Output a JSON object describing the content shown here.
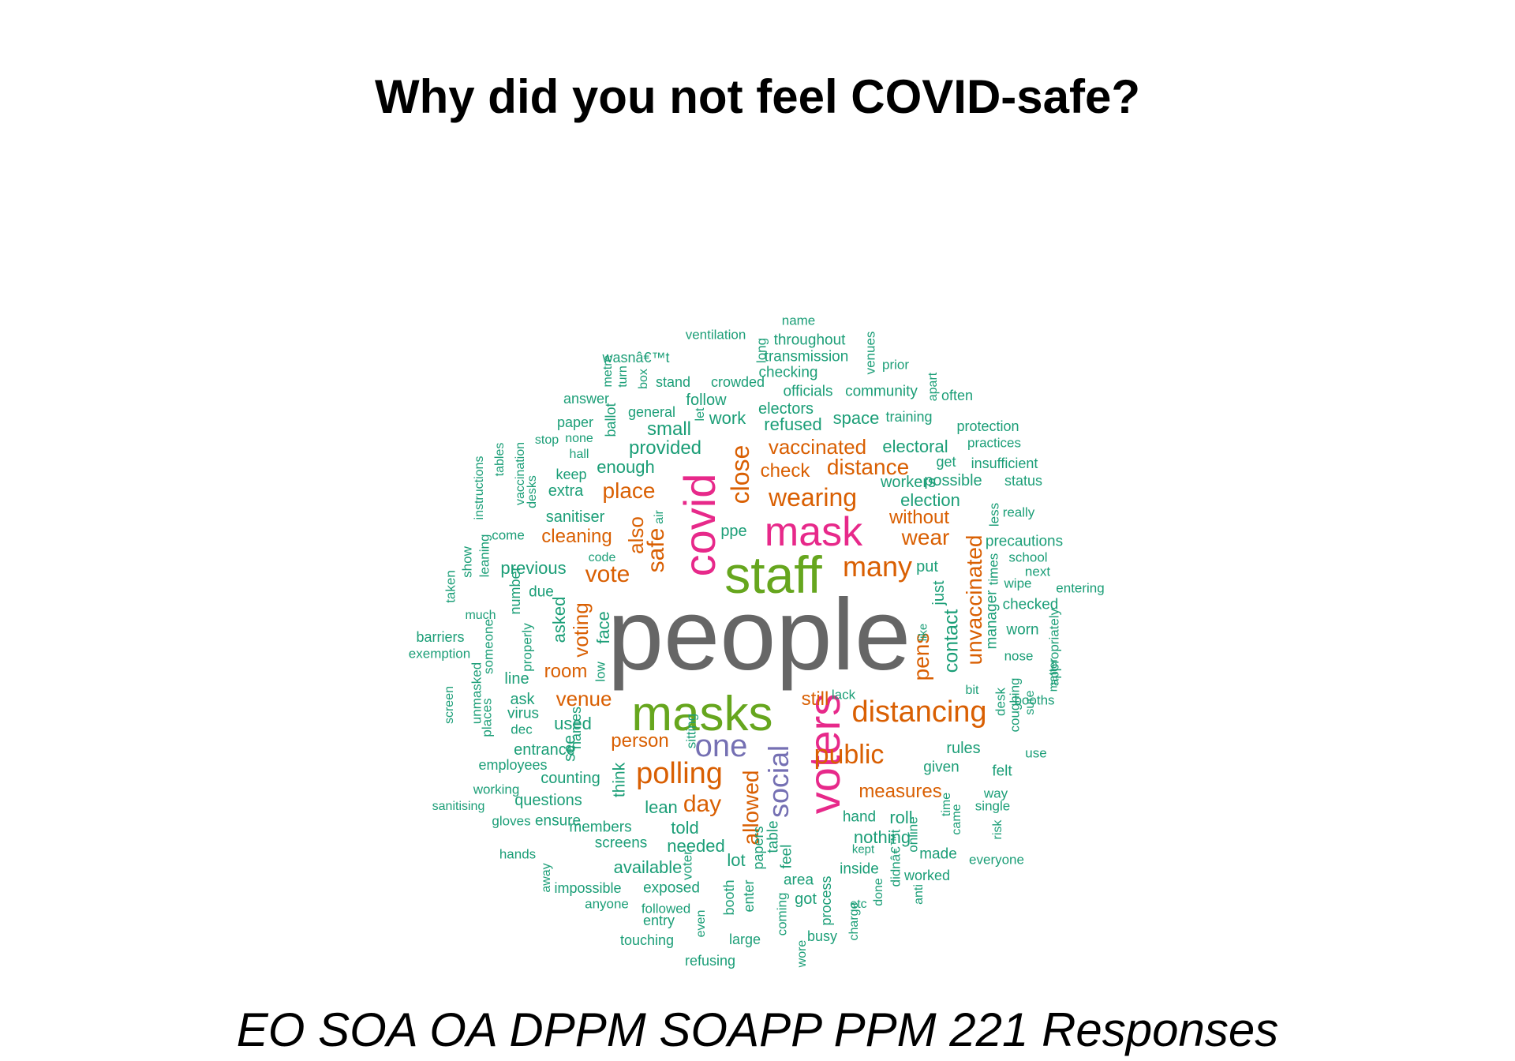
{
  "title": "Why did you not feel COVID-safe?",
  "subtitle": "EO SOA OA DPPM SOAPP PPM 221 Responses",
  "colors": {
    "grey": "#666666",
    "green": "#66a61e",
    "pink": "#e7298a",
    "orange": "#d95f02",
    "purple": "#7570b3",
    "teal": "#1b9e77"
  },
  "words": [
    {
      "t": "people",
      "c": "grey"
    },
    {
      "t": "staff",
      "c": "green"
    },
    {
      "t": "masks",
      "c": "green"
    },
    {
      "t": "mask",
      "c": "pink"
    },
    {
      "t": "covid",
      "c": "pink"
    },
    {
      "t": "voters",
      "c": "pink"
    },
    {
      "t": "one",
      "c": "purple"
    },
    {
      "t": "social",
      "c": "purple"
    },
    {
      "t": "many",
      "c": "orange"
    },
    {
      "t": "distancing",
      "c": "orange"
    },
    {
      "t": "public",
      "c": "orange"
    },
    {
      "t": "polling",
      "c": "orange"
    },
    {
      "t": "wearing",
      "c": "orange"
    },
    {
      "t": "distance",
      "c": "orange"
    },
    {
      "t": "vaccinated",
      "c": "orange"
    },
    {
      "t": "check",
      "c": "orange"
    },
    {
      "t": "close",
      "c": "orange"
    },
    {
      "t": "place",
      "c": "orange"
    },
    {
      "t": "vote",
      "c": "orange"
    },
    {
      "t": "safe",
      "c": "orange"
    },
    {
      "t": "also",
      "c": "orange"
    },
    {
      "t": "cleaning",
      "c": "orange"
    },
    {
      "t": "without",
      "c": "orange"
    },
    {
      "t": "wear",
      "c": "orange"
    },
    {
      "t": "unvaccinated",
      "c": "orange"
    },
    {
      "t": "voting",
      "c": "orange"
    },
    {
      "t": "room",
      "c": "orange"
    },
    {
      "t": "venue",
      "c": "orange"
    },
    {
      "t": "person",
      "c": "orange"
    },
    {
      "t": "day",
      "c": "orange"
    },
    {
      "t": "allowed",
      "c": "orange"
    },
    {
      "t": "measures",
      "c": "orange"
    },
    {
      "t": "pens",
      "c": "orange"
    },
    {
      "t": "still",
      "c": "orange"
    },
    {
      "t": "name",
      "c": "teal"
    },
    {
      "t": "ventilation",
      "c": "teal"
    },
    {
      "t": "throughout",
      "c": "teal"
    },
    {
      "t": "long",
      "c": "teal"
    },
    {
      "t": "venues",
      "c": "teal"
    },
    {
      "t": "wasnâ€™t",
      "c": "teal"
    },
    {
      "t": "transmission",
      "c": "teal"
    },
    {
      "t": "prior",
      "c": "teal"
    },
    {
      "t": "metre",
      "c": "teal"
    },
    {
      "t": "turn",
      "c": "teal"
    },
    {
      "t": "box",
      "c": "teal"
    },
    {
      "t": "stand",
      "c": "teal"
    },
    {
      "t": "crowded",
      "c": "teal"
    },
    {
      "t": "checking",
      "c": "teal"
    },
    {
      "t": "answer",
      "c": "teal"
    },
    {
      "t": "follow",
      "c": "teal"
    },
    {
      "t": "officials",
      "c": "teal"
    },
    {
      "t": "community",
      "c": "teal"
    },
    {
      "t": "apart",
      "c": "teal"
    },
    {
      "t": "often",
      "c": "teal"
    },
    {
      "t": "general",
      "c": "teal"
    },
    {
      "t": "electors",
      "c": "teal"
    },
    {
      "t": "paper",
      "c": "teal"
    },
    {
      "t": "ballot",
      "c": "teal"
    },
    {
      "t": "let",
      "c": "teal"
    },
    {
      "t": "work",
      "c": "teal"
    },
    {
      "t": "refused",
      "c": "teal"
    },
    {
      "t": "space",
      "c": "teal"
    },
    {
      "t": "training",
      "c": "teal"
    },
    {
      "t": "protection",
      "c": "teal"
    },
    {
      "t": "stop",
      "c": "teal"
    },
    {
      "t": "none",
      "c": "teal"
    },
    {
      "t": "small",
      "c": "teal"
    },
    {
      "t": "hall",
      "c": "teal"
    },
    {
      "t": "provided",
      "c": "teal"
    },
    {
      "t": "electoral",
      "c": "teal"
    },
    {
      "t": "practices",
      "c": "teal"
    },
    {
      "t": "vaccination",
      "c": "teal"
    },
    {
      "t": "tables",
      "c": "teal"
    },
    {
      "t": "keep",
      "c": "teal"
    },
    {
      "t": "enough",
      "c": "teal"
    },
    {
      "t": "get",
      "c": "teal"
    },
    {
      "t": "insufficient",
      "c": "teal"
    },
    {
      "t": "instructions",
      "c": "teal"
    },
    {
      "t": "desks",
      "c": "teal"
    },
    {
      "t": "extra",
      "c": "teal"
    },
    {
      "t": "possible",
      "c": "teal"
    },
    {
      "t": "workers",
      "c": "teal"
    },
    {
      "t": "status",
      "c": "teal"
    },
    {
      "t": "election",
      "c": "teal"
    },
    {
      "t": "sanitiser",
      "c": "teal"
    },
    {
      "t": "air",
      "c": "teal"
    },
    {
      "t": "less",
      "c": "teal"
    },
    {
      "t": "really",
      "c": "teal"
    },
    {
      "t": "come",
      "c": "teal"
    },
    {
      "t": "ppe",
      "c": "teal"
    },
    {
      "t": "precautions",
      "c": "teal"
    },
    {
      "t": "show",
      "c": "teal"
    },
    {
      "t": "leaning",
      "c": "teal"
    },
    {
      "t": "code",
      "c": "teal"
    },
    {
      "t": "school",
      "c": "teal"
    },
    {
      "t": "previous",
      "c": "teal"
    },
    {
      "t": "put",
      "c": "teal"
    },
    {
      "t": "next",
      "c": "teal"
    },
    {
      "t": "times",
      "c": "teal"
    },
    {
      "t": "wipe",
      "c": "teal"
    },
    {
      "t": "entering",
      "c": "teal"
    },
    {
      "t": "taken",
      "c": "teal"
    },
    {
      "t": "number",
      "c": "teal"
    },
    {
      "t": "due",
      "c": "teal"
    },
    {
      "t": "just",
      "c": "teal"
    },
    {
      "t": "checked",
      "c": "teal"
    },
    {
      "t": "much",
      "c": "teal"
    },
    {
      "t": "asked",
      "c": "teal"
    },
    {
      "t": "face",
      "c": "teal"
    },
    {
      "t": "manager",
      "c": "teal"
    },
    {
      "t": "like",
      "c": "teal"
    },
    {
      "t": "contact",
      "c": "teal"
    },
    {
      "t": "worn",
      "c": "teal"
    },
    {
      "t": "barriers",
      "c": "teal"
    },
    {
      "t": "someone",
      "c": "teal"
    },
    {
      "t": "properly",
      "c": "teal"
    },
    {
      "t": "nose",
      "c": "teal"
    },
    {
      "t": "appropriately",
      "c": "teal"
    },
    {
      "t": "exemption",
      "c": "teal"
    },
    {
      "t": "matter",
      "c": "teal"
    },
    {
      "t": "low",
      "c": "teal"
    },
    {
      "t": "line",
      "c": "teal"
    },
    {
      "t": "bit",
      "c": "teal"
    },
    {
      "t": "lack",
      "c": "teal"
    },
    {
      "t": "unmasked",
      "c": "teal"
    },
    {
      "t": "screen",
      "c": "teal"
    },
    {
      "t": "ask",
      "c": "teal"
    },
    {
      "t": "desk",
      "c": "teal"
    },
    {
      "t": "coughing",
      "c": "teal"
    },
    {
      "t": "places",
      "c": "teal"
    },
    {
      "t": "virus",
      "c": "teal"
    },
    {
      "t": "sure",
      "c": "teal"
    },
    {
      "t": "booths",
      "c": "teal"
    },
    {
      "t": "used",
      "c": "teal"
    },
    {
      "t": "dec",
      "c": "teal"
    },
    {
      "t": "names",
      "c": "teal"
    },
    {
      "t": "sitting",
      "c": "teal"
    },
    {
      "t": "rules",
      "c": "teal"
    },
    {
      "t": "use",
      "c": "teal"
    },
    {
      "t": "entrance",
      "c": "teal"
    },
    {
      "t": "see",
      "c": "teal"
    },
    {
      "t": "employees",
      "c": "teal"
    },
    {
      "t": "given",
      "c": "teal"
    },
    {
      "t": "felt",
      "c": "teal"
    },
    {
      "t": "counting",
      "c": "teal"
    },
    {
      "t": "think",
      "c": "teal"
    },
    {
      "t": "working",
      "c": "teal"
    },
    {
      "t": "way",
      "c": "teal"
    },
    {
      "t": "questions",
      "c": "teal"
    },
    {
      "t": "lean",
      "c": "teal"
    },
    {
      "t": "sanitising",
      "c": "teal"
    },
    {
      "t": "time",
      "c": "teal"
    },
    {
      "t": "single",
      "c": "teal"
    },
    {
      "t": "roll",
      "c": "teal"
    },
    {
      "t": "ensure",
      "c": "teal"
    },
    {
      "t": "hand",
      "c": "teal"
    },
    {
      "t": "gloves",
      "c": "teal"
    },
    {
      "t": "came",
      "c": "teal"
    },
    {
      "t": "members",
      "c": "teal"
    },
    {
      "t": "told",
      "c": "teal"
    },
    {
      "t": "risk",
      "c": "teal"
    },
    {
      "t": "online",
      "c": "teal"
    },
    {
      "t": "nothing",
      "c": "teal"
    },
    {
      "t": "screens",
      "c": "teal"
    },
    {
      "t": "needed",
      "c": "teal"
    },
    {
      "t": "table",
      "c": "teal"
    },
    {
      "t": "feel",
      "c": "teal"
    },
    {
      "t": "kept",
      "c": "teal"
    },
    {
      "t": "everyone",
      "c": "teal"
    },
    {
      "t": "hands",
      "c": "teal"
    },
    {
      "t": "made",
      "c": "teal"
    },
    {
      "t": "papers",
      "c": "teal"
    },
    {
      "t": "lot",
      "c": "teal"
    },
    {
      "t": "voter",
      "c": "teal"
    },
    {
      "t": "available",
      "c": "teal"
    },
    {
      "t": "inside",
      "c": "teal"
    },
    {
      "t": "didnâ€™t",
      "c": "teal"
    },
    {
      "t": "worked",
      "c": "teal"
    },
    {
      "t": "away",
      "c": "teal"
    },
    {
      "t": "impossible",
      "c": "teal"
    },
    {
      "t": "exposed",
      "c": "teal"
    },
    {
      "t": "area",
      "c": "teal"
    },
    {
      "t": "done",
      "c": "teal"
    },
    {
      "t": "anti",
      "c": "teal"
    },
    {
      "t": "anyone",
      "c": "teal"
    },
    {
      "t": "booth",
      "c": "teal"
    },
    {
      "t": "enter",
      "c": "teal"
    },
    {
      "t": "got",
      "c": "teal"
    },
    {
      "t": "process",
      "c": "teal"
    },
    {
      "t": "etc",
      "c": "teal"
    },
    {
      "t": "followed",
      "c": "teal"
    },
    {
      "t": "even",
      "c": "teal"
    },
    {
      "t": "coming",
      "c": "teal"
    },
    {
      "t": "charge",
      "c": "teal"
    },
    {
      "t": "entry",
      "c": "teal"
    },
    {
      "t": "large",
      "c": "teal"
    },
    {
      "t": "busy",
      "c": "teal"
    },
    {
      "t": "touching",
      "c": "teal"
    },
    {
      "t": "wore",
      "c": "teal"
    },
    {
      "t": "refusing",
      "c": "teal"
    }
  ]
}
